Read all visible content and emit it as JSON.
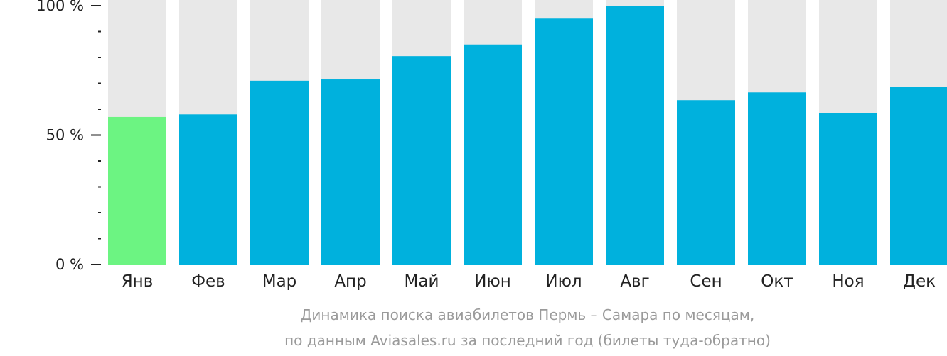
{
  "chart_data": {
    "type": "bar",
    "categories": [
      "Янв",
      "Фев",
      "Мар",
      "Апр",
      "Май",
      "Июн",
      "Июл",
      "Авг",
      "Сен",
      "Окт",
      "Ноя",
      "Дек"
    ],
    "values": [
      57,
      58,
      71,
      71.5,
      80.5,
      85,
      95,
      100,
      63.5,
      66.5,
      58.5,
      68.5
    ],
    "ylim": [
      0,
      100
    ],
    "yticks": [
      {
        "value": 100,
        "label": "100 %"
      },
      {
        "value": 50,
        "label": "50 %"
      },
      {
        "value": 0,
        "label": "0 %"
      }
    ],
    "minor_tick_step": 10,
    "highlight_index": 0,
    "colors": {
      "bar": "#00b1dd",
      "highlight": "#6cf482",
      "track": "#e8e8e8",
      "axis": "#222222"
    },
    "caption_lines": [
      "Динамика поиска авиабилетов Пермь – Самара по месяцам,",
      "по данным Aviasales.ru за последний год (билеты туда-обратно)"
    ]
  }
}
